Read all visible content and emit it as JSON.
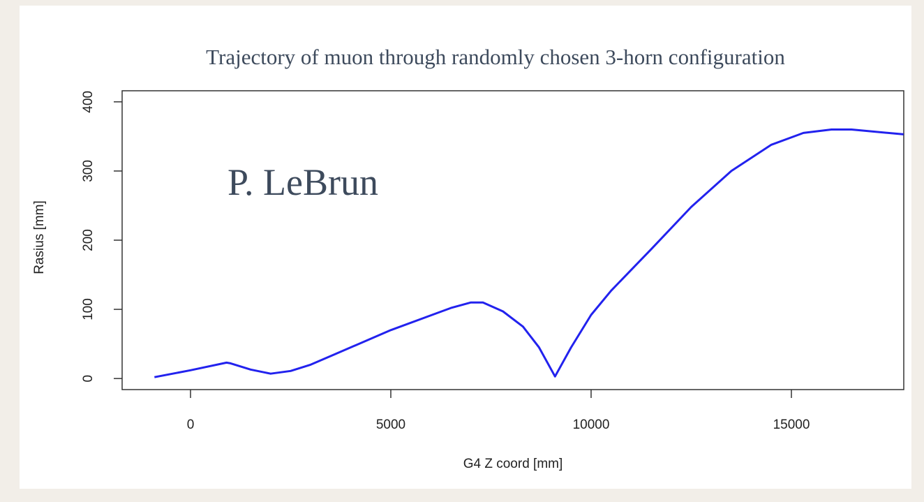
{
  "chart_data": {
    "type": "line",
    "title": "Trajectory of muon through randomly chosen 3-horn configuration",
    "annotation": "P. LeBrun",
    "xlabel": "G4 Z coord [mm]",
    "ylabel": "Rasius [mm]",
    "x": [
      -900,
      0,
      900,
      1000,
      1500,
      2000,
      2500,
      3000,
      5000,
      6500,
      7000,
      7300,
      7800,
      8300,
      8700,
      9100,
      9500,
      10000,
      10500,
      11500,
      12500,
      13500,
      14500,
      15300,
      16000,
      16500,
      17800
    ],
    "values": [
      2,
      12,
      23,
      22,
      13,
      7,
      11,
      20,
      70,
      102,
      110,
      110,
      97,
      75,
      45,
      3,
      45,
      92,
      127,
      187,
      248,
      300,
      338,
      355,
      360,
      360,
      353
    ],
    "color": "#2222ee",
    "xlim": [
      -1707,
      17805
    ],
    "ylim": [
      -16,
      416
    ],
    "xticks": [
      0,
      5000,
      10000,
      15000
    ],
    "yticks": [
      0,
      100,
      200,
      300,
      400
    ]
  }
}
